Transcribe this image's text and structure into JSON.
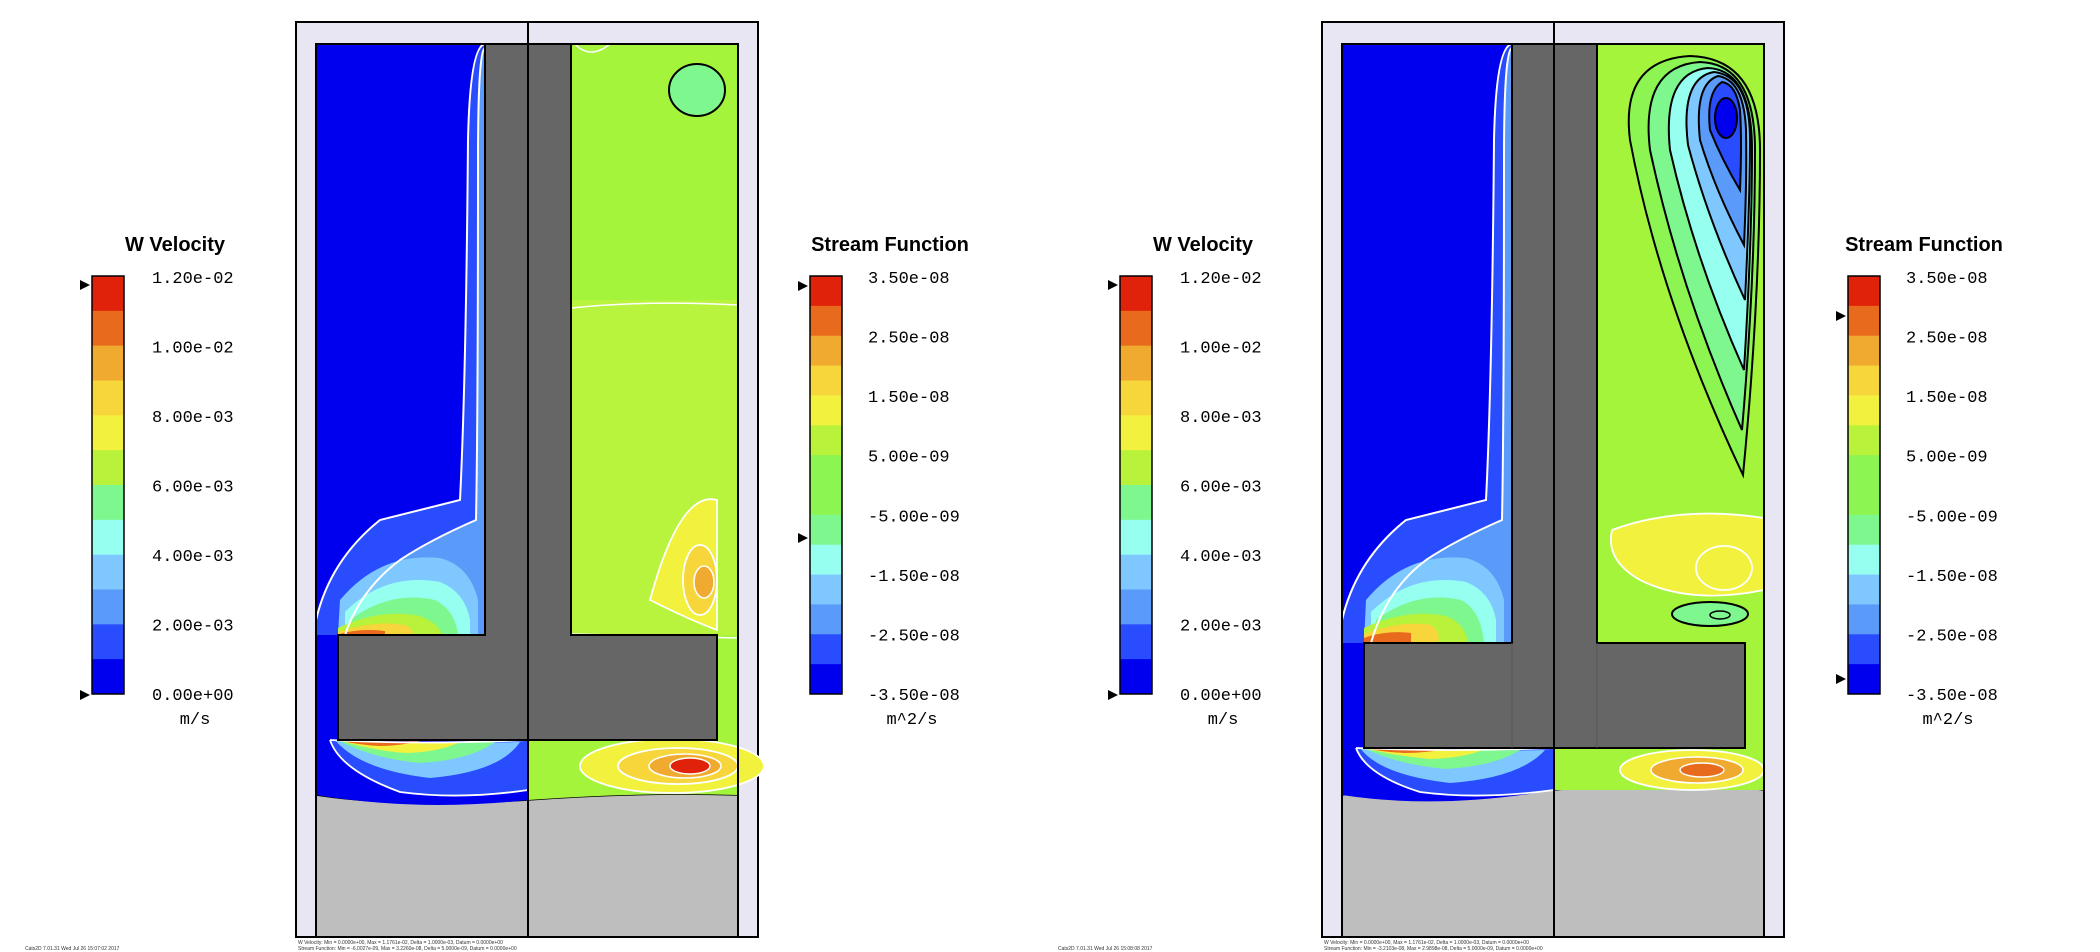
{
  "colors": {
    "scale": [
      "#0000ee",
      "#2a4cff",
      "#5a9af8",
      "#7ec8ff",
      "#96fff0",
      "#7ef78e",
      "#8cf552",
      "#b8f23a",
      "#f2f23e",
      "#f6d63a",
      "#f0aa30",
      "#e86a1c",
      "#e0220a"
    ],
    "solid_gray": "#666666",
    "light_gray": "#bebebe",
    "frame_fill": "#e8e6f2",
    "left_domain": "#0000ee",
    "right_domain_a": "#a4f43c",
    "right_domain_b": "#8cf552"
  },
  "panels": [
    {
      "w_colorbar": {
        "title": "W Velocity",
        "ticks": [
          "1.20e-02",
          "1.00e-02",
          "8.00e-03",
          "6.00e-03",
          "4.00e-03",
          "2.00e-03",
          "0.00e+00"
        ],
        "unit": "m/s"
      },
      "sf_colorbar": {
        "title": "Stream Function",
        "ticks": [
          "3.50e-08",
          "2.50e-08",
          "1.50e-08",
          "5.00e-09",
          "-5.00e-09",
          "-1.50e-08",
          "-2.50e-08",
          "-3.50e-08"
        ],
        "unit": "m^2/s"
      },
      "footer_left": "Cats2D 7.01.31 Wed Jul 26 15:07:02 2017",
      "footer_line1": "W Velocity: Min = 0.0000e+00, Max = 1.1761e-02, Delta = 1.0000e-03, Datum = 0.0000e+00",
      "footer_line2": "Stream Function: Min = -6.0027e-09, Max = 3.2260e-08, Delta = 5.0000e-09, Datum = 0.0000e+00"
    },
    {
      "w_colorbar": {
        "title": "W Velocity",
        "ticks": [
          "1.20e-02",
          "1.00e-02",
          "8.00e-03",
          "6.00e-03",
          "4.00e-03",
          "2.00e-03",
          "0.00e+00"
        ],
        "unit": "m/s"
      },
      "sf_colorbar": {
        "title": "Stream Function",
        "ticks": [
          "3.50e-08",
          "2.50e-08",
          "1.50e-08",
          "5.00e-09",
          "-5.00e-09",
          "-1.50e-08",
          "-2.50e-08",
          "-3.50e-08"
        ],
        "unit": "m^2/s"
      },
      "footer_left": "Cats2D 7.01.31 Wed Jul 26 15:08:08 2017",
      "footer_line1": "W Velocity: Min = 0.0000e+00, Max = 1.1761e-02, Delta = 1.0000e-03, Datum = 0.0000e+00",
      "footer_line2": "Stream Function: Min = -3.2103e-08, Max = 2.9898e-08, Delta = 5.0000e-09, Datum = 0.0000e+00"
    }
  ]
}
